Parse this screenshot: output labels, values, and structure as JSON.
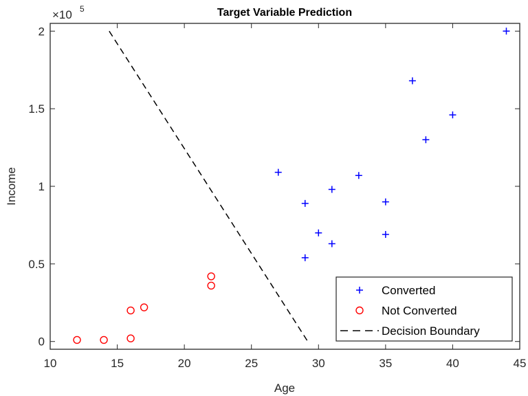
{
  "chart_data": {
    "type": "scatter",
    "title": "Target Variable Prediction",
    "xlabel": "Age",
    "ylabel": "Income",
    "y_exponent_label": "×10",
    "y_exponent": "5",
    "xlim": [
      10,
      45
    ],
    "ylim": [
      -5000,
      205000
    ],
    "x_ticks": [
      10,
      15,
      20,
      25,
      30,
      35,
      40,
      45
    ],
    "x_tick_labels": [
      "10",
      "15",
      "20",
      "25",
      "30",
      "35",
      "40",
      "45"
    ],
    "y_ticks": [
      0,
      50000,
      100000,
      150000,
      200000
    ],
    "y_tick_labels": [
      "0",
      "0.5",
      "1",
      "1.5",
      "2"
    ],
    "grid": false,
    "legend_placement": "bottom-right",
    "series": [
      {
        "name": "Converted",
        "marker": "plus",
        "color": "#0000ff",
        "points": [
          [
            27,
            109000
          ],
          [
            29,
            89000
          ],
          [
            29,
            54000
          ],
          [
            30,
            70000
          ],
          [
            31,
            98000
          ],
          [
            31,
            63000
          ],
          [
            33,
            107000
          ],
          [
            35,
            90000
          ],
          [
            35,
            69000
          ],
          [
            37,
            168000
          ],
          [
            38,
            130000
          ],
          [
            40,
            146000
          ],
          [
            44,
            200000
          ]
        ]
      },
      {
        "name": "Not Converted",
        "marker": "circle",
        "color": "#ff0000",
        "points": [
          [
            12,
            1000
          ],
          [
            14,
            1000
          ],
          [
            16,
            2000
          ],
          [
            16,
            20000
          ],
          [
            17,
            22000
          ],
          [
            22,
            42000
          ],
          [
            22,
            36000
          ]
        ]
      },
      {
        "name": "Decision Boundary",
        "marker": "dashed-line",
        "color": "#000000",
        "points": [
          [
            14.4,
            200000
          ],
          [
            29.2,
            0
          ]
        ]
      }
    ]
  }
}
